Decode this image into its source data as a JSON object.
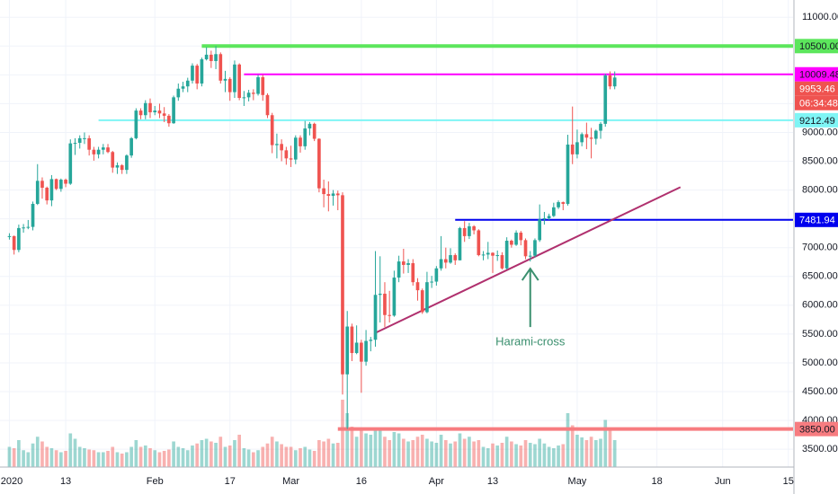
{
  "chart_data": {
    "type": "candlestick",
    "up_color": "#26a69a",
    "down_color": "#ef5350",
    "grid": true,
    "xlim": [
      "2019-12-30",
      "2020-06-16"
    ],
    "ylim": [
      3190,
      11300
    ],
    "xticks": [
      {
        "value": "2020-01-01",
        "label": "2020"
      },
      {
        "value": "2020-01-13",
        "label": "13"
      },
      {
        "value": "2020-02-01",
        "label": "Feb"
      },
      {
        "value": "2020-02-17",
        "label": "17"
      },
      {
        "value": "2020-03-01",
        "label": "Mar"
      },
      {
        "value": "2020-03-16",
        "label": "16"
      },
      {
        "value": "2020-04-01",
        "label": "Apr"
      },
      {
        "value": "2020-04-13",
        "label": "13"
      },
      {
        "value": "2020-05-01",
        "label": "May"
      },
      {
        "value": "2020-05-18",
        "label": "18"
      },
      {
        "value": "2020-06-01",
        "label": "Jun"
      },
      {
        "value": "2020-06-15",
        "label": "15"
      }
    ],
    "yticks": [
      {
        "value": 3500,
        "label": "3500.00"
      },
      {
        "value": 4000,
        "label": "4000.00"
      },
      {
        "value": 4500,
        "label": "4500.00"
      },
      {
        "value": 5000,
        "label": "5000.00"
      },
      {
        "value": 5500,
        "label": "5500.00"
      },
      {
        "value": 6000,
        "label": "6000.00"
      },
      {
        "value": 6500,
        "label": "6500.00"
      },
      {
        "value": 7000,
        "label": "7000.00"
      },
      {
        "value": 7500,
        "label": "7500.00"
      },
      {
        "value": 8000,
        "label": "8000.00"
      },
      {
        "value": 8500,
        "label": "8500.00"
      },
      {
        "value": 9000,
        "label": "9000.00"
      },
      {
        "value": 9500,
        "label": "9500.00"
      },
      {
        "value": 10000,
        "label": "10000.00"
      },
      {
        "value": 10500,
        "label": "10500.00"
      },
      {
        "value": 11000,
        "label": "11000.00"
      }
    ],
    "x": [
      "2020-01-01",
      "2020-01-02",
      "2020-01-03",
      "2020-01-04",
      "2020-01-05",
      "2020-01-06",
      "2020-01-07",
      "2020-01-08",
      "2020-01-09",
      "2020-01-10",
      "2020-01-11",
      "2020-01-12",
      "2020-01-13",
      "2020-01-14",
      "2020-01-15",
      "2020-01-16",
      "2020-01-17",
      "2020-01-18",
      "2020-01-19",
      "2020-01-20",
      "2020-01-21",
      "2020-01-22",
      "2020-01-23",
      "2020-01-24",
      "2020-01-25",
      "2020-01-26",
      "2020-01-27",
      "2020-01-28",
      "2020-01-29",
      "2020-01-30",
      "2020-01-31",
      "2020-02-01",
      "2020-02-02",
      "2020-02-03",
      "2020-02-04",
      "2020-02-05",
      "2020-02-06",
      "2020-02-07",
      "2020-02-08",
      "2020-02-09",
      "2020-02-10",
      "2020-02-11",
      "2020-02-12",
      "2020-02-13",
      "2020-02-14",
      "2020-02-15",
      "2020-02-16",
      "2020-02-17",
      "2020-02-18",
      "2020-02-19",
      "2020-02-20",
      "2020-02-21",
      "2020-02-22",
      "2020-02-23",
      "2020-02-24",
      "2020-02-25",
      "2020-02-26",
      "2020-02-27",
      "2020-02-28",
      "2020-02-29",
      "2020-03-01",
      "2020-03-02",
      "2020-03-03",
      "2020-03-04",
      "2020-03-05",
      "2020-03-06",
      "2020-03-07",
      "2020-03-08",
      "2020-03-09",
      "2020-03-10",
      "2020-03-11",
      "2020-03-12",
      "2020-03-13",
      "2020-03-14",
      "2020-03-15",
      "2020-03-16",
      "2020-03-17",
      "2020-03-18",
      "2020-03-19",
      "2020-03-20",
      "2020-03-21",
      "2020-03-22",
      "2020-03-23",
      "2020-03-24",
      "2020-03-25",
      "2020-03-26",
      "2020-03-27",
      "2020-03-28",
      "2020-03-29",
      "2020-03-30",
      "2020-03-31",
      "2020-04-01",
      "2020-04-02",
      "2020-04-03",
      "2020-04-04",
      "2020-04-05",
      "2020-04-06",
      "2020-04-07",
      "2020-04-08",
      "2020-04-09",
      "2020-04-10",
      "2020-04-11",
      "2020-04-12",
      "2020-04-13",
      "2020-04-14",
      "2020-04-15",
      "2020-04-16",
      "2020-04-17",
      "2020-04-18",
      "2020-04-19",
      "2020-04-20",
      "2020-04-21",
      "2020-04-22",
      "2020-04-23",
      "2020-04-24",
      "2020-04-25",
      "2020-04-26",
      "2020-04-27",
      "2020-04-28",
      "2020-04-29",
      "2020-04-30",
      "2020-05-01",
      "2020-05-02",
      "2020-05-03",
      "2020-05-04",
      "2020-05-05",
      "2020-05-06",
      "2020-05-07",
      "2020-05-08",
      "2020-05-09"
    ],
    "open": [
      7195,
      7200,
      6960,
      7340,
      7350,
      7360,
      7760,
      8160,
      8040,
      7820,
      8190,
      8020,
      8180,
      8110,
      8810,
      8820,
      8900,
      8900,
      8700,
      8620,
      8700,
      8740,
      8660,
      8390,
      8430,
      8350,
      8600,
      8900,
      9380,
      9300,
      9510,
      9350,
      9380,
      9330,
      9290,
      9160,
      9610,
      9760,
      9800,
      9900,
      10160,
      9850,
      10270,
      10350,
      10240,
      10360,
      9900,
      9930,
      9700,
      10180,
      9600,
      9610,
      9690,
      9670,
      9960,
      9650,
      9300,
      8780,
      8800,
      8690,
      8550,
      8530,
      8910,
      8760,
      9070,
      9150,
      8890,
      8030,
      7930,
      7900,
      7940,
      7910,
      4800,
      5630,
      5170,
      5350,
      5020,
      5380,
      5400,
      6180,
      6200,
      5830,
      5820,
      6480,
      6760,
      6700,
      6730,
      6400,
      6260,
      5880,
      6400,
      6410,
      6640,
      6800,
      6740,
      6870,
      6780,
      7340,
      7200,
      7370,
      7300,
      6870,
      6880,
      6910,
      6860,
      6870,
      6640,
      7120,
      7050,
      7260,
      7130,
      6850,
      6860,
      7130,
      7490,
      7510,
      7550,
      7700,
      7790,
      7760,
      8790,
      8620,
      8830,
      8970,
      8910,
      8890,
      9030,
      9150,
      9990,
      9800
    ],
    "high": [
      7250,
      7210,
      7400,
      7410,
      7480,
      7800,
      8450,
      8220,
      8060,
      8260,
      8200,
      8200,
      8200,
      8880,
      8900,
      8950,
      9000,
      8950,
      8750,
      8750,
      8800,
      8800,
      8680,
      8480,
      8450,
      8620,
      8920,
      9420,
      9420,
      9560,
      9590,
      9460,
      9500,
      9440,
      9320,
      9640,
      9850,
      9880,
      9950,
      10200,
      10190,
      10300,
      10480,
      10420,
      10500,
      10390,
      10070,
      9960,
      10250,
      10200,
      9720,
      9740,
      9750,
      10000,
      10000,
      9680,
      9340,
      8980,
      8880,
      8750,
      8770,
      8950,
      8950,
      9200,
      9180,
      9170,
      8900,
      8180,
      8150,
      8000,
      7990,
      7960,
      5900,
      5680,
      5650,
      5400,
      5570,
      5450,
      6940,
      6850,
      6400,
      6250,
      6600,
      6860,
      6980,
      6800,
      6800,
      6470,
      6290,
      6580,
      6510,
      6680,
      7200,
      7000,
      6990,
      6900,
      7360,
      7460,
      7430,
      7390,
      7320,
      6940,
      7100,
      6920,
      6950,
      6920,
      7180,
      7140,
      7300,
      7290,
      7160,
      6940,
      7160,
      7750,
      7620,
      7590,
      7780,
      7820,
      7800,
      8960,
      9450,
      9050,
      9000,
      9170,
      9080,
      9050,
      9180,
      10020,
      10060,
      10060
    ],
    "low": [
      7140,
      6880,
      6920,
      7260,
      7320,
      7300,
      7740,
      7850,
      7750,
      7720,
      8000,
      7970,
      8050,
      8090,
      8610,
      8720,
      8800,
      8600,
      8510,
      8550,
      8620,
      8640,
      8300,
      8280,
      8280,
      8280,
      8560,
      8880,
      9230,
      9230,
      9250,
      9300,
      9250,
      9180,
      9100,
      9150,
      9550,
      9700,
      9700,
      9850,
      9750,
      9800,
      10250,
      10120,
      10100,
      9850,
      9700,
      9550,
      9600,
      9560,
      9460,
      9540,
      9560,
      9640,
      9550,
      9250,
      8640,
      8550,
      8500,
      8440,
      8400,
      8450,
      8650,
      8700,
      8950,
      8850,
      7960,
      7700,
      7630,
      7730,
      7650,
      4450,
      3850,
      5030,
      5150,
      4480,
      4950,
      5200,
      5280,
      5700,
      5620,
      5700,
      5800,
      6400,
      6550,
      6560,
      6340,
      6080,
      5850,
      5860,
      6300,
      6340,
      6600,
      6640,
      6720,
      6700,
      6780,
      7100,
      7150,
      7230,
      6850,
      6780,
      6800,
      6560,
      6770,
      6620,
      6620,
      7000,
      7030,
      7040,
      6800,
      6760,
      6830,
      7100,
      7400,
      7480,
      7530,
      7670,
      7650,
      7730,
      8450,
      8550,
      8760,
      8710,
      8550,
      8790,
      8890,
      9100,
      9750,
      9750
    ],
    "close": [
      7200,
      6960,
      7340,
      7350,
      7360,
      7760,
      8160,
      8040,
      7820,
      8190,
      8020,
      8180,
      8110,
      8810,
      8820,
      8900,
      8900,
      8700,
      8620,
      8700,
      8740,
      8660,
      8390,
      8430,
      8350,
      8600,
      8900,
      9380,
      9300,
      9510,
      9350,
      9380,
      9330,
      9290,
      9160,
      9610,
      9760,
      9800,
      9900,
      10160,
      9850,
      10270,
      10350,
      10240,
      10360,
      9900,
      9930,
      9700,
      10180,
      9600,
      9610,
      9690,
      9670,
      9960,
      9650,
      9300,
      8780,
      8800,
      8690,
      8550,
      8530,
      8910,
      8760,
      9070,
      9150,
      8890,
      8030,
      7930,
      7900,
      7940,
      7910,
      4800,
      5630,
      5170,
      5350,
      5020,
      5380,
      5400,
      6180,
      6200,
      5830,
      5820,
      6480,
      6760,
      6700,
      6730,
      6400,
      6260,
      5880,
      6400,
      6410,
      6640,
      6800,
      6740,
      6870,
      6780,
      7340,
      7200,
      7370,
      7300,
      6870,
      6880,
      6910,
      6860,
      6870,
      6640,
      7120,
      7050,
      7260,
      7130,
      6850,
      6860,
      7130,
      7490,
      7510,
      7550,
      7700,
      7790,
      7760,
      8790,
      8620,
      8830,
      8970,
      8910,
      8890,
      9030,
      9150,
      9990,
      9800,
      9953.46
    ],
    "volume": [
      30,
      28,
      40,
      25,
      22,
      35,
      45,
      38,
      30,
      28,
      25,
      22,
      24,
      50,
      42,
      30,
      28,
      26,
      25,
      22,
      22,
      24,
      30,
      22,
      20,
      22,
      30,
      40,
      30,
      32,
      28,
      25,
      22,
      24,
      26,
      38,
      30,
      28,
      25,
      32,
      35,
      40,
      42,
      38,
      36,
      45,
      30,
      32,
      40,
      48,
      28,
      26,
      22,
      25,
      30,
      35,
      45,
      38,
      34,
      30,
      30,
      25,
      28,
      30,
      26,
      24,
      40,
      38,
      42,
      35,
      36,
      100,
      80,
      60,
      45,
      55,
      50,
      48,
      58,
      55,
      45,
      40,
      52,
      50,
      42,
      38,
      40,
      45,
      48,
      42,
      38,
      36,
      48,
      40,
      35,
      38,
      50,
      42,
      45,
      38,
      40,
      30,
      28,
      35,
      32,
      36,
      45,
      38,
      34,
      32,
      40,
      36,
      34,
      42,
      35,
      30,
      28,
      32,
      34,
      80,
      62,
      48,
      44,
      40,
      45,
      40,
      42,
      70,
      55,
      40
    ],
    "countdown": "06:34:48",
    "levels": [
      {
        "price": {
          "value": 10500,
          "label": "10500.00"
        },
        "from": "2020-02-11",
        "color": "#5ce65c",
        "text_color": "#131722",
        "width": 4
      },
      {
        "price": 10009.48,
        "from": "2020-02-20",
        "color": "#ff00ff",
        "text_color": "#131722",
        "width": 2
      },
      {
        "price": 9212.49,
        "from": "2020-01-20",
        "color": "#7ff5f5",
        "text_color": "#131722",
        "width": 2
      },
      {
        "price": 7481.94,
        "from": "2020-04-05",
        "color": "#0000ee",
        "text_color": "#ffffff",
        "width": 2
      },
      {
        "price": {
          "value": 3850,
          "label": "3850.00"
        },
        "from": "2020-03-11",
        "color": "#f77c80",
        "text_color": "#131722",
        "width": 4
      }
    ],
    "trendline": {
      "color": "#b0306e",
      "points": [
        {
          "x": "2020-03-19",
          "y": 5520
        },
        {
          "x": "2020-05-23",
          "y": 8050
        }
      ]
    },
    "annotation": {
      "text": "Harami-cross",
      "x": "2020-04-21",
      "color": "#3a8f6e"
    }
  }
}
